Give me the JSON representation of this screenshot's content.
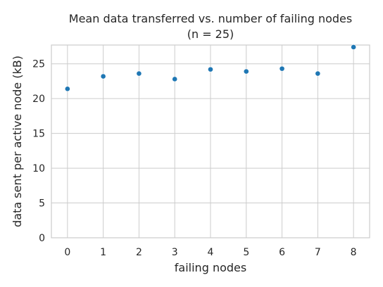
{
  "chart_data": {
    "type": "scatter",
    "title": "Mean data transferred vs. number of failing nodes",
    "subtitle": "(n = 25)",
    "xlabel": "failing nodes",
    "ylabel": "data sent per active node (kB)",
    "x": [
      0,
      1,
      2,
      3,
      4,
      5,
      6,
      7,
      8
    ],
    "y": [
      21.4,
      23.2,
      23.6,
      22.8,
      24.2,
      23.9,
      24.3,
      23.6,
      27.4
    ],
    "xlim": [
      -0.45,
      8.45
    ],
    "ylim": [
      0,
      27.7
    ],
    "xticks": [
      "0",
      "1",
      "2",
      "3",
      "4",
      "5",
      "6",
      "7",
      "8"
    ],
    "yticks": [
      "0",
      "5",
      "10",
      "15",
      "20",
      "25"
    ],
    "grid": true,
    "marker_color": "#1f77b4"
  }
}
